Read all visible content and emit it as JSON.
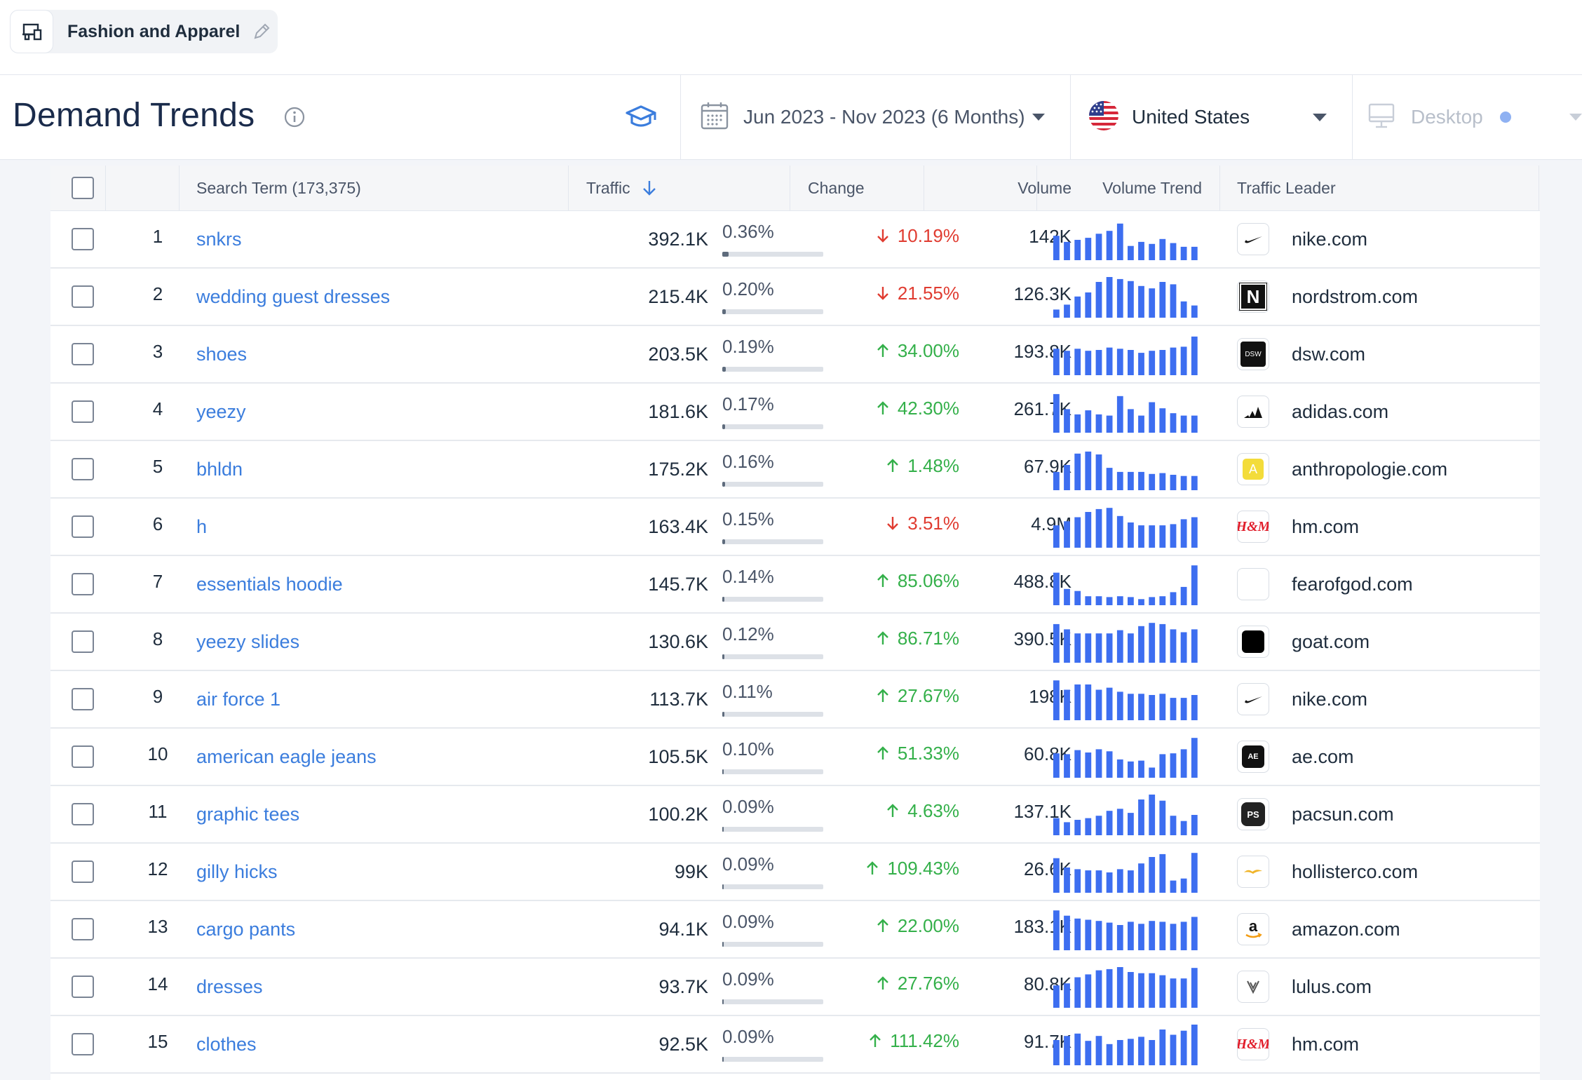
{
  "category": {
    "label": "Fashion and Apparel"
  },
  "header": {
    "title": "Demand Trends",
    "date_range": "Jun 2023 - Nov 2023 (6 Months)",
    "country": "United States",
    "device": "Desktop"
  },
  "colors": {
    "accent": "#3b7ddd",
    "bar": "#3d6ef0",
    "up": "#34b04a",
    "down": "#e03c31"
  },
  "table": {
    "columns": {
      "search_term": "Search Term (173,375)",
      "traffic": "Traffic",
      "change": "Change",
      "volume": "Volume",
      "volume_trend": "Volume Trend",
      "traffic_leader": "Traffic Leader"
    },
    "rows": [
      {
        "rank": "1",
        "term": "snkrs",
        "traffic": "392.1K",
        "share": "0.36%",
        "share_pct": 0.36,
        "change": "10.19%",
        "dir": "down",
        "volume": "142K",
        "trend": [
          0.6,
          0.45,
          0.5,
          0.55,
          0.65,
          0.72,
          0.9,
          0.35,
          0.45,
          0.4,
          0.52,
          0.42,
          0.33,
          0.33
        ],
        "leader": "nike.com",
        "logo": "nike"
      },
      {
        "rank": "2",
        "term": "wedding guest dresses",
        "traffic": "215.4K",
        "share": "0.20%",
        "share_pct": 0.2,
        "change": "21.55%",
        "dir": "down",
        "volume": "126.3K",
        "trend": [
          0.2,
          0.32,
          0.52,
          0.62,
          0.88,
          1.0,
          0.95,
          0.9,
          0.78,
          0.72,
          0.88,
          0.82,
          0.4,
          0.3
        ],
        "leader": "nordstrom.com",
        "logo": "nordstrom"
      },
      {
        "rank": "3",
        "term": "shoes",
        "traffic": "203.5K",
        "share": "0.19%",
        "share_pct": 0.19,
        "change": "34.00%",
        "dir": "up",
        "volume": "193.8K",
        "trend": [
          0.65,
          0.6,
          0.65,
          0.6,
          0.62,
          0.68,
          0.65,
          0.62,
          0.55,
          0.6,
          0.62,
          0.68,
          0.7,
          0.95
        ],
        "leader": "dsw.com",
        "logo": "dsw"
      },
      {
        "rank": "4",
        "term": "yeezy",
        "traffic": "181.6K",
        "share": "0.17%",
        "share_pct": 0.17,
        "change": "42.30%",
        "dir": "up",
        "volume": "261.7K",
        "trend": [
          0.95,
          0.58,
          0.45,
          0.55,
          0.45,
          0.42,
          0.9,
          0.58,
          0.42,
          0.75,
          0.6,
          0.48,
          0.42,
          0.42
        ],
        "leader": "adidas.com",
        "logo": "adidas"
      },
      {
        "rank": "5",
        "term": "bhldn",
        "traffic": "175.2K",
        "share": "0.16%",
        "share_pct": 0.16,
        "change": "1.48%",
        "dir": "up",
        "volume": "67.9K",
        "trend": [
          0.45,
          0.62,
          0.9,
          0.95,
          0.88,
          0.55,
          0.45,
          0.45,
          0.45,
          0.4,
          0.42,
          0.38,
          0.35,
          0.35
        ],
        "leader": "anthropologie.com",
        "logo": "anthropologie"
      },
      {
        "rank": "6",
        "term": "h",
        "traffic": "163.4K",
        "share": "0.15%",
        "share_pct": 0.15,
        "change": "3.51%",
        "dir": "down",
        "volume": "4.9M",
        "trend": [
          0.55,
          0.65,
          0.75,
          0.88,
          0.95,
          0.98,
          0.78,
          0.62,
          0.55,
          0.55,
          0.55,
          0.58,
          0.7,
          0.75
        ],
        "leader": "hm.com",
        "logo": "hm"
      },
      {
        "rank": "7",
        "term": "essentials hoodie",
        "traffic": "145.7K",
        "share": "0.14%",
        "share_pct": 0.14,
        "change": "85.06%",
        "dir": "up",
        "volume": "488.8K",
        "trend": [
          0.8,
          0.4,
          0.35,
          0.22,
          0.22,
          0.2,
          0.22,
          0.2,
          0.15,
          0.2,
          0.22,
          0.32,
          0.45,
          0.98
        ],
        "leader": "fearofgod.com",
        "logo": "blank"
      },
      {
        "rank": "8",
        "term": "yeezy slides",
        "traffic": "130.6K",
        "share": "0.12%",
        "share_pct": 0.12,
        "change": "86.71%",
        "dir": "up",
        "volume": "390.5K",
        "trend": [
          0.95,
          0.82,
          0.72,
          0.72,
          0.72,
          0.72,
          0.8,
          0.72,
          0.9,
          0.98,
          0.95,
          0.82,
          0.75,
          0.82
        ],
        "leader": "goat.com",
        "logo": "goat"
      },
      {
        "rank": "9",
        "term": "air force 1",
        "traffic": "113.7K",
        "share": "0.11%",
        "share_pct": 0.11,
        "change": "27.67%",
        "dir": "up",
        "volume": "198K",
        "trend": [
          0.98,
          0.75,
          0.88,
          0.88,
          0.75,
          0.8,
          0.7,
          0.65,
          0.65,
          0.62,
          0.65,
          0.55,
          0.55,
          0.62
        ],
        "leader": "nike.com",
        "logo": "nike"
      },
      {
        "rank": "10",
        "term": "american eagle jeans",
        "traffic": "105.5K",
        "share": "0.10%",
        "share_pct": 0.1,
        "change": "51.33%",
        "dir": "up",
        "volume": "60.8K",
        "trend": [
          0.6,
          0.58,
          0.68,
          0.62,
          0.7,
          0.65,
          0.45,
          0.4,
          0.42,
          0.25,
          0.58,
          0.6,
          0.7,
          0.98
        ],
        "leader": "ae.com",
        "logo": "ae"
      },
      {
        "rank": "11",
        "term": "graphic tees",
        "traffic": "100.2K",
        "share": "0.09%",
        "share_pct": 0.09,
        "change": "4.63%",
        "dir": "up",
        "volume": "137.1K",
        "trend": [
          0.42,
          0.32,
          0.38,
          0.42,
          0.48,
          0.6,
          0.65,
          0.55,
          0.88,
          1.0,
          0.85,
          0.48,
          0.35,
          0.5
        ],
        "leader": "pacsun.com",
        "logo": "pacsun"
      },
      {
        "rank": "12",
        "term": "gilly hicks",
        "traffic": "99K",
        "share": "0.09%",
        "share_pct": 0.09,
        "change": "109.43%",
        "dir": "up",
        "volume": "26.6K",
        "trend": [
          0.85,
          0.62,
          0.58,
          0.55,
          0.55,
          0.5,
          0.58,
          0.55,
          0.72,
          0.88,
          0.95,
          0.3,
          0.35,
          0.98
        ],
        "leader": "hollisterco.com",
        "logo": "hollister"
      },
      {
        "rank": "13",
        "term": "cargo pants",
        "traffic": "94.1K",
        "share": "0.09%",
        "share_pct": 0.09,
        "change": "22.00%",
        "dir": "up",
        "volume": "183.1K",
        "trend": [
          0.98,
          0.85,
          0.78,
          0.75,
          0.72,
          0.68,
          0.62,
          0.7,
          0.65,
          0.72,
          0.7,
          0.65,
          0.7,
          0.82
        ],
        "leader": "amazon.com",
        "logo": "amazon"
      },
      {
        "rank": "14",
        "term": "dresses",
        "traffic": "93.7K",
        "share": "0.09%",
        "share_pct": 0.09,
        "change": "27.76%",
        "dir": "up",
        "volume": "80.8K",
        "trend": [
          0.55,
          0.6,
          0.75,
          0.82,
          0.92,
          0.95,
          1.0,
          0.88,
          0.85,
          0.85,
          0.8,
          0.72,
          0.72,
          0.98
        ],
        "leader": "lulus.com",
        "logo": "lulus"
      },
      {
        "rank": "15",
        "term": "clothes",
        "traffic": "92.5K",
        "share": "0.09%",
        "share_pct": 0.09,
        "change": "111.42%",
        "dir": "up",
        "volume": "91.7K",
        "trend": [
          0.62,
          0.72,
          0.78,
          0.6,
          0.72,
          0.52,
          0.62,
          0.65,
          0.7,
          0.62,
          0.88,
          0.75,
          0.85,
          1.0
        ],
        "leader": "hm.com",
        "logo": "hm"
      }
    ]
  }
}
